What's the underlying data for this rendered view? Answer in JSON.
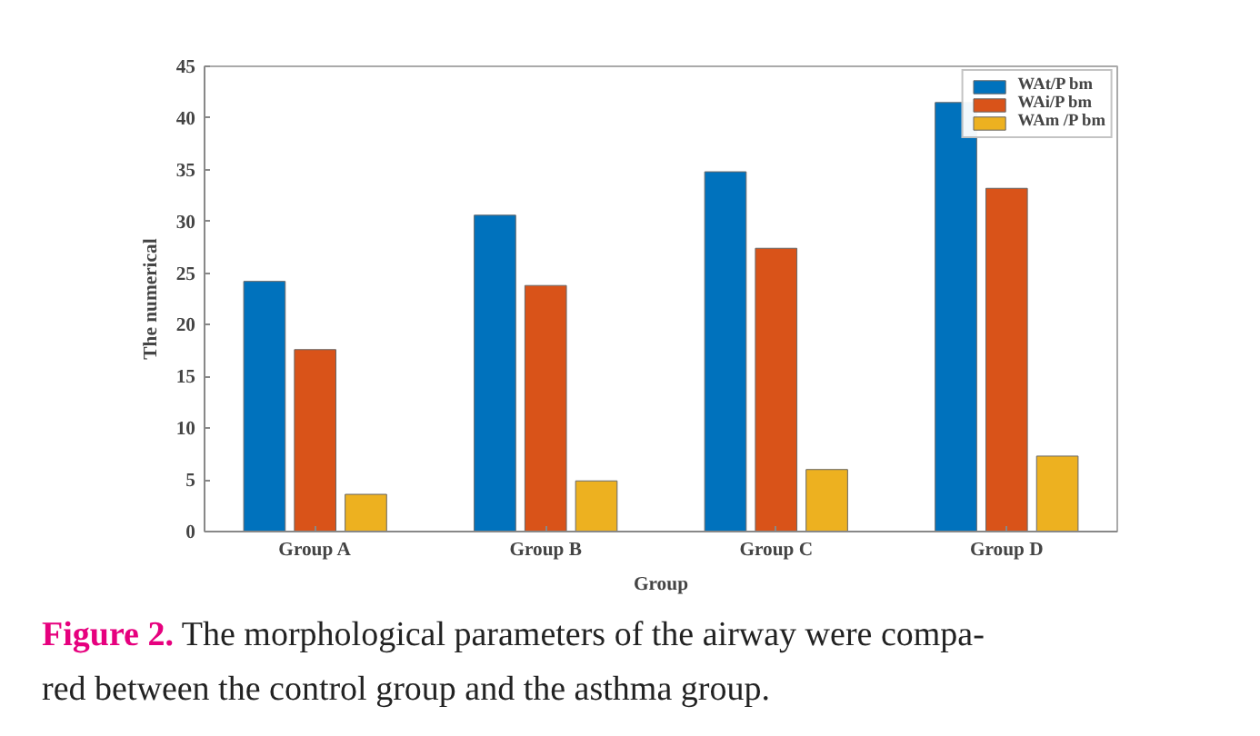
{
  "chart_data": {
    "type": "bar",
    "xlabel": "Group",
    "ylabel": "The numerical",
    "categories": [
      "Group A",
      "Group B",
      "Group C",
      "Group D"
    ],
    "series": [
      {
        "name": "WAt/P bm",
        "color": "#0072bd",
        "values": [
          24.2,
          30.6,
          34.8,
          41.5
        ]
      },
      {
        "name": "WAi/P bm",
        "color": "#d95319",
        "values": [
          17.6,
          23.8,
          27.4,
          33.2
        ]
      },
      {
        "name": "WAm /P bm",
        "color": "#edb120",
        "values": [
          3.6,
          4.9,
          6.0,
          7.3
        ]
      }
    ],
    "ylim": [
      0,
      45
    ],
    "yticks": [
      0,
      5,
      10,
      15,
      20,
      25,
      30,
      35,
      40,
      45
    ],
    "grid": false,
    "legend": "top right",
    "annotations": [
      "Figure 2.",
      "The morphological parameters of the airway were compa-",
      "red between the control group and the asthma group."
    ]
  }
}
